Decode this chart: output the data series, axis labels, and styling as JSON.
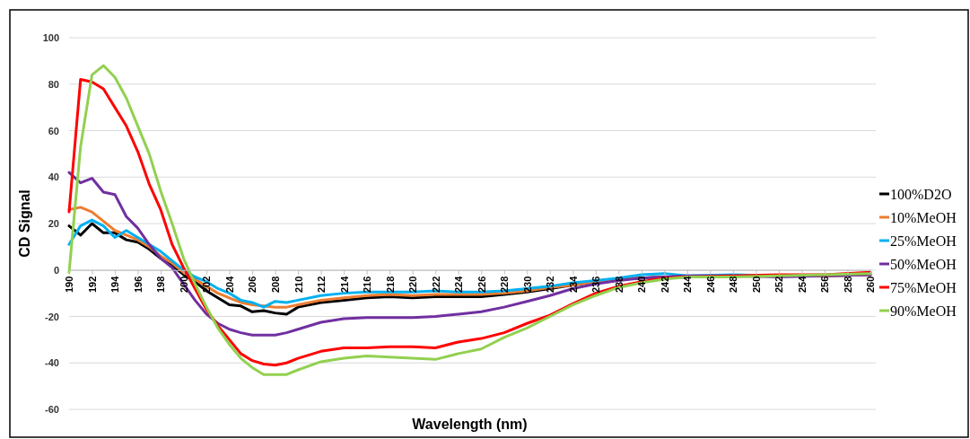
{
  "chart_data": {
    "type": "line",
    "xlabel": "Wavelength (nm)",
    "ylabel": "CD Signal",
    "x": [
      190,
      191,
      192,
      193,
      194,
      195,
      196,
      197,
      198,
      199,
      200,
      201,
      202,
      203,
      204,
      205,
      206,
      207,
      208,
      209,
      210,
      212,
      214,
      216,
      218,
      220,
      222,
      224,
      226,
      228,
      230,
      232,
      234,
      236,
      238,
      240,
      242,
      244,
      248,
      252,
      256,
      260
    ],
    "xlim": [
      190,
      260
    ],
    "xticks": [
      190,
      192,
      194,
      196,
      198,
      200,
      202,
      204,
      206,
      208,
      210,
      212,
      214,
      216,
      218,
      220,
      222,
      224,
      226,
      228,
      230,
      232,
      234,
      236,
      238,
      240,
      242,
      244,
      246,
      248,
      250,
      252,
      254,
      256,
      258,
      260
    ],
    "ylim": [
      -60,
      100
    ],
    "yticks": [
      -60,
      -40,
      -20,
      0,
      20,
      40,
      60,
      80,
      100
    ],
    "grid": "y",
    "legend": "right",
    "marker": "none",
    "line_style": "solid",
    "series": [
      {
        "name": "100%D2O",
        "color": "#000000",
        "values": [
          19,
          15,
          20,
          16,
          16,
          13,
          12,
          9,
          5,
          2,
          -2,
          -5,
          -9,
          -12,
          -15,
          -15.5,
          -18,
          -17.5,
          -18.5,
          -19,
          -16,
          -14,
          -13,
          -12,
          -11.5,
          -12,
          -11.5,
          -11.5,
          -11.5,
          -10.5,
          -9.5,
          -8,
          -6.5,
          -5,
          -4,
          -3.5,
          -3,
          -3,
          -2.5,
          -2.5,
          -2.5,
          -2
        ]
      },
      {
        "name": "10%MeOH",
        "color": "#ed7d31",
        "values": [
          26,
          27,
          25,
          21,
          17,
          15,
          13,
          10,
          6,
          3,
          -1,
          -4,
          -7,
          -10,
          -12,
          -14,
          -15,
          -15.5,
          -16,
          -16,
          -15,
          -13,
          -12,
          -11,
          -10.5,
          -11,
          -10.5,
          -10.5,
          -10.5,
          -10,
          -9,
          -7.5,
          -6.5,
          -5,
          -4,
          -3.5,
          -3,
          -3,
          -2.5,
          -2.5,
          -2.5,
          -2
        ]
      },
      {
        "name": "25%MeOH",
        "color": "#00b0f0",
        "values": [
          11,
          19,
          21.5,
          19,
          14,
          17,
          14,
          11,
          8,
          4,
          0,
          -3,
          -5,
          -8,
          -10,
          -13,
          -14,
          -16,
          -13.5,
          -14,
          -13,
          -11,
          -10,
          -9.5,
          -9.5,
          -9.5,
          -9,
          -9.5,
          -9.5,
          -9,
          -8,
          -7,
          -5.5,
          -4.5,
          -3.5,
          -2,
          -1.5,
          -2.5,
          -2,
          -2.5,
          null,
          null
        ]
      },
      {
        "name": "50%MeOH",
        "color": "#7030a0",
        "values": [
          42,
          37.5,
          39.5,
          33.5,
          32.5,
          23,
          18,
          11,
          5,
          1,
          -6,
          -13,
          -19,
          -23,
          -25.5,
          -27,
          -28,
          -28,
          -28,
          -27,
          -25.5,
          -22.5,
          -21,
          -20.5,
          -20.5,
          -20.5,
          -20,
          -19,
          -18,
          -16,
          -13.5,
          -11,
          -8,
          -6,
          -4.5,
          -3.5,
          -3,
          -2.5,
          -2.5,
          -3,
          -2.5,
          -2
        ]
      },
      {
        "name": "75%MeOH",
        "color": "#ff0000",
        "values": [
          25,
          82,
          81,
          78,
          70,
          62,
          51,
          37,
          26,
          11,
          1,
          -8,
          -17,
          -24,
          -30,
          -36,
          -39,
          -40.5,
          -41,
          -40,
          -38,
          -35,
          -33.5,
          -33.5,
          -33,
          -33,
          -33.5,
          -31,
          -29.5,
          -27,
          -23,
          -19.5,
          -14.5,
          -10,
          -7,
          -5,
          -3.5,
          -3,
          -2.5,
          -2,
          -2,
          -1
        ]
      },
      {
        "name": "90%MeOH",
        "color": "#92d050",
        "values": [
          -1,
          53,
          84,
          88,
          83,
          74,
          62,
          50,
          34,
          20,
          5,
          -6,
          -16,
          -25,
          -32,
          -38,
          -42,
          -45,
          -45,
          -45,
          -43,
          -39.5,
          -38,
          -37,
          -37.5,
          -38,
          -38.5,
          -36,
          -34,
          -29,
          -25,
          -20,
          -15,
          -11,
          -7.5,
          -5.5,
          -4,
          -3,
          -3,
          -2.5,
          -2,
          -1.5
        ]
      }
    ]
  }
}
